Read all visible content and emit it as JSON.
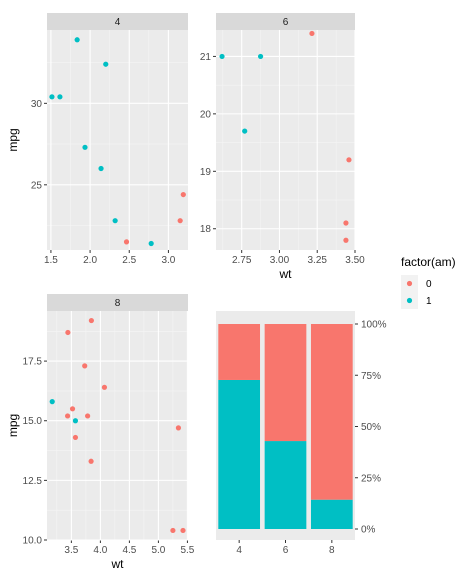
{
  "colors": {
    "am_0": "#F8766D",
    "am_1": "#00BFC4",
    "panel_bg": "#EBEBEB",
    "grid_major": "#FFFFFF",
    "strip_bg": "#D9D9D9"
  },
  "legend": {
    "title": "factor(am)",
    "entries": [
      {
        "label": "0",
        "color": "#F8766D"
      },
      {
        "label": "1",
        "color": "#00BFC4"
      }
    ]
  },
  "chart_data": [
    {
      "type": "scatter",
      "strip": "4",
      "xlabel": "",
      "ylabel": "mpg",
      "xlim": [
        1.45,
        3.25
      ],
      "ylim": [
        21.0,
        34.5
      ],
      "xticks": [
        1.5,
        2.0,
        2.5,
        3.0
      ],
      "xtick_labels": [
        "1.5",
        "2.0",
        "2.5",
        "3.0"
      ],
      "yticks": [
        25,
        30
      ],
      "ytick_labels": [
        "25",
        "30"
      ],
      "grid": true,
      "series": [
        {
          "name": "0",
          "color": "#F8766D",
          "points": [
            [
              2.465,
              21.5
            ],
            [
              3.15,
              22.8
            ],
            [
              3.19,
              24.4
            ]
          ]
        },
        {
          "name": "1",
          "color": "#00BFC4",
          "points": [
            [
              1.513,
              30.4
            ],
            [
              1.615,
              30.4
            ],
            [
              1.835,
              33.9
            ],
            [
              1.935,
              27.3
            ],
            [
              2.14,
              26.0
            ],
            [
              2.2,
              32.4
            ],
            [
              2.32,
              22.8
            ],
            [
              2.78,
              21.4
            ]
          ]
        }
      ]
    },
    {
      "type": "scatter",
      "strip": "6",
      "xlabel": "wt",
      "ylabel": "",
      "xlim": [
        2.58,
        3.5
      ],
      "ylim": [
        17.63,
        21.46
      ],
      "xticks": [
        2.75,
        3.0,
        3.25,
        3.5
      ],
      "xtick_labels": [
        "2.75",
        "3.00",
        "3.25",
        "3.50"
      ],
      "yticks": [
        18,
        19,
        20,
        21
      ],
      "ytick_labels": [
        "18",
        "19",
        "20",
        "21"
      ],
      "grid": true,
      "series": [
        {
          "name": "0",
          "color": "#F8766D",
          "points": [
            [
              3.215,
              21.4
            ],
            [
              3.44,
              18.1
            ],
            [
              3.44,
              17.8
            ],
            [
              3.46,
              19.2
            ]
          ]
        },
        {
          "name": "1",
          "color": "#00BFC4",
          "points": [
            [
              2.62,
              21.0
            ],
            [
              2.77,
              19.7
            ],
            [
              2.875,
              21.0
            ]
          ]
        }
      ]
    },
    {
      "type": "scatter",
      "strip": "8",
      "xlabel": "wt",
      "ylabel": "mpg",
      "xlim": [
        3.08,
        5.51
      ],
      "ylim": [
        10.0,
        19.6
      ],
      "xticks": [
        3.5,
        4.0,
        4.5,
        5.0,
        5.5
      ],
      "xtick_labels": [
        "3.5",
        "4.0",
        "4.5",
        "5.0",
        "5.5"
      ],
      "yticks": [
        10.0,
        12.5,
        15.0,
        17.5
      ],
      "ytick_labels": [
        "10.0",
        "12.5",
        "15.0",
        "17.5"
      ],
      "grid": true,
      "series": [
        {
          "name": "0",
          "color": "#F8766D",
          "points": [
            [
              3.44,
              18.7
            ],
            [
              3.57,
              14.3
            ],
            [
              4.07,
              16.4
            ],
            [
              3.73,
              17.3
            ],
            [
              3.78,
              15.2
            ],
            [
              5.25,
              10.4
            ],
            [
              5.424,
              10.4
            ],
            [
              5.345,
              14.7
            ],
            [
              3.52,
              15.5
            ],
            [
              3.435,
              15.2
            ],
            [
              3.84,
              13.3
            ],
            [
              3.845,
              19.2
            ]
          ]
        },
        {
          "name": "1",
          "color": "#00BFC4",
          "points": [
            [
              3.17,
              15.8
            ],
            [
              3.57,
              15.0
            ]
          ]
        }
      ]
    },
    {
      "type": "bar",
      "stacked": "fill",
      "xlabel": "",
      "ylabel": "",
      "categories": [
        "4",
        "6",
        "8"
      ],
      "xtick_labels": [
        "4",
        "6",
        "8"
      ],
      "ylim": [
        0,
        1
      ],
      "yticks": [
        0,
        0.25,
        0.5,
        0.75,
        1.0
      ],
      "ytick_labels": [
        "0%",
        "25%",
        "50%",
        "75%",
        "100%"
      ],
      "y_axis_position": "right",
      "grid": false,
      "series": [
        {
          "name": "1",
          "color": "#00BFC4",
          "values": [
            0.727,
            0.429,
            0.143
          ]
        },
        {
          "name": "0",
          "color": "#F8766D",
          "values": [
            0.273,
            0.571,
            0.857
          ]
        }
      ]
    }
  ]
}
